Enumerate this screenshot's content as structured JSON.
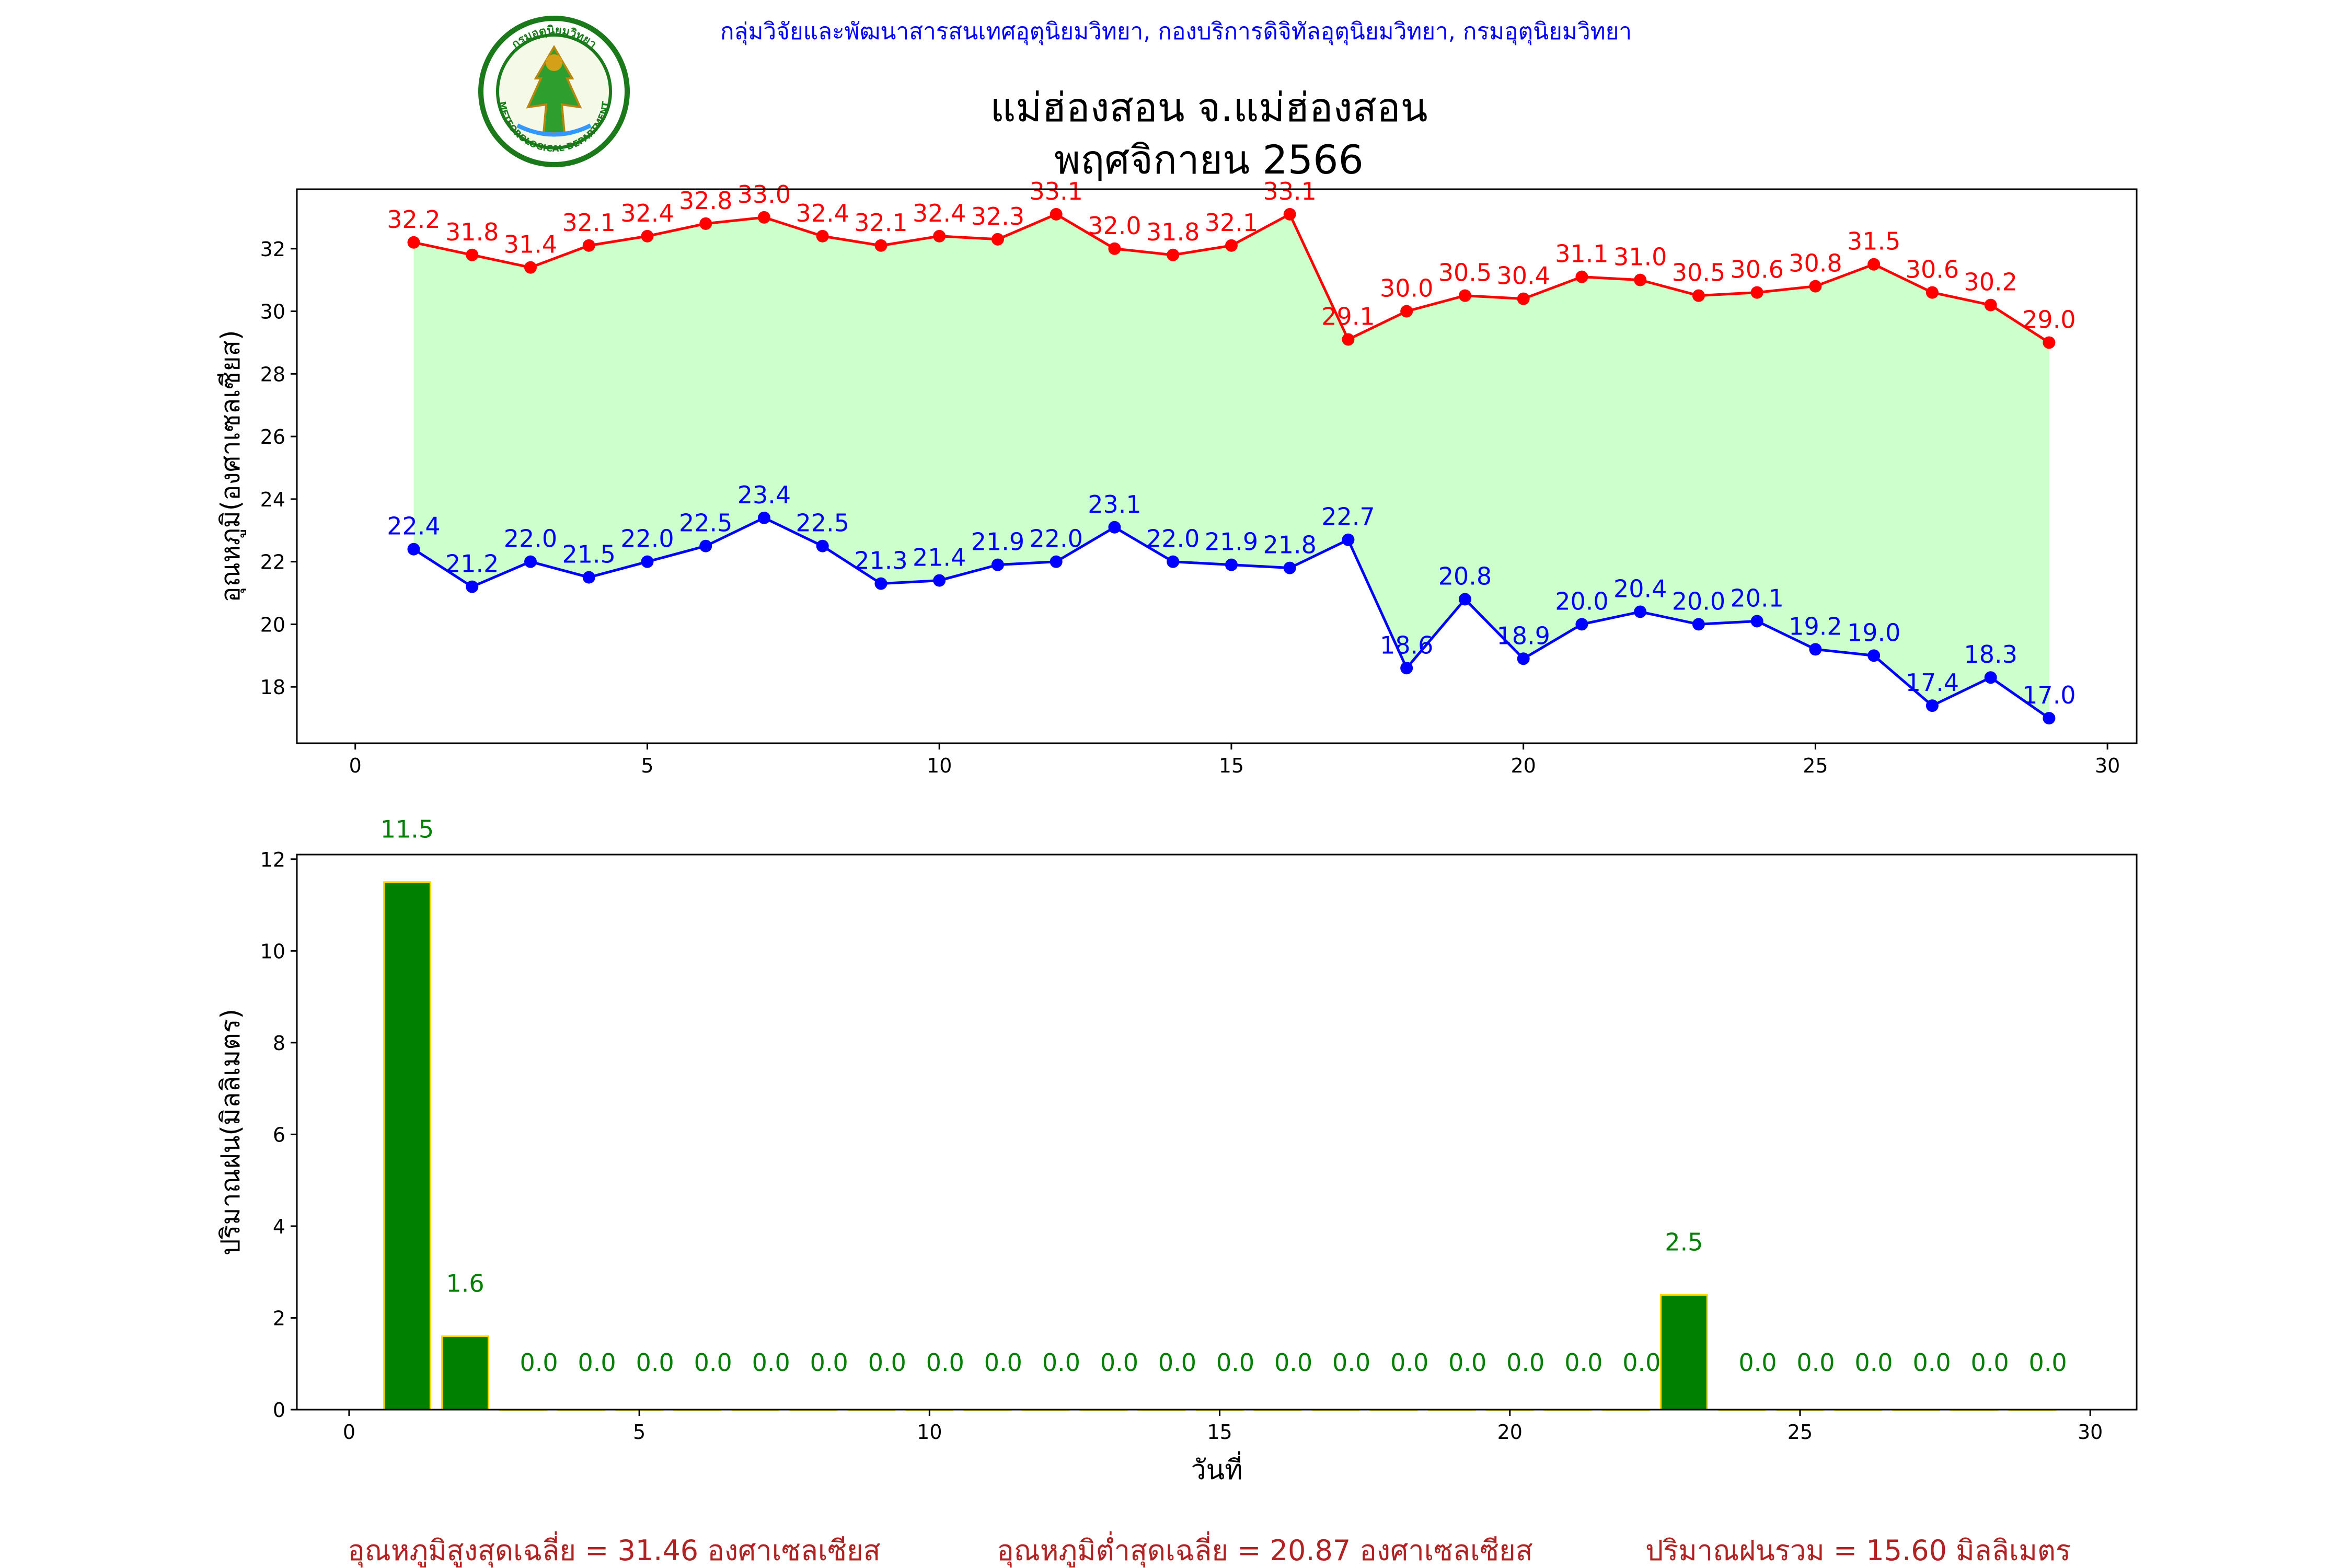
{
  "header": {
    "org_line": "กลุ่มวิจัยและพัฒนาสารสนเทศอุตุนิยมวิทยา, กองบริการดิจิทัลอุตุนิยมวิทยา, กรมอุตุนิยมวิทยา",
    "title_line1": "แม่ฮ่องสอน จ.แม่ฮ่องสอน",
    "title_line2": "พฤศจิกายน 2566",
    "logo_text_top": "กรมอุตุนิยมวิทยา",
    "logo_text_bottom": "METEOROLOGICAL DEPARTMENT"
  },
  "colors": {
    "max_line": "#ff0000",
    "min_line": "#0000ff",
    "fill": "#ccffcc",
    "rain_bar": "#008000",
    "rain_edge": "#ffd700",
    "rain_label": "#008000",
    "org_text": "#0000ff",
    "summary_text": "#b22222"
  },
  "chart_data": [
    {
      "type": "line",
      "ylabel": "อุณหภูมิ(องศาเซลเซียส)",
      "xlabel": "",
      "xlim": [
        -1,
        30.5
      ],
      "ylim": [
        16.2,
        33.9
      ],
      "xticks": [
        0,
        5,
        10,
        15,
        20,
        25,
        30
      ],
      "yticks": [
        18,
        20,
        22,
        24,
        26,
        28,
        30,
        32
      ],
      "x": [
        1,
        2,
        3,
        4,
        5,
        6,
        7,
        8,
        9,
        10,
        11,
        12,
        13,
        14,
        15,
        16,
        17,
        18,
        19,
        20,
        21,
        22,
        23,
        24,
        25,
        26,
        27,
        28,
        29
      ],
      "series": [
        {
          "values": [
            32.2,
            31.8,
            31.4,
            32.1,
            32.4,
            32.8,
            33.0,
            32.4,
            32.1,
            32.4,
            32.3,
            33.1,
            32.0,
            31.8,
            32.1,
            33.1,
            29.1,
            30.0,
            30.5,
            30.4,
            31.1,
            31.0,
            30.5,
            30.6,
            30.8,
            31.5,
            30.6,
            30.2,
            29.0
          ]
        },
        {
          "values": [
            22.4,
            21.2,
            22.0,
            21.5,
            22.0,
            22.5,
            23.4,
            22.5,
            21.3,
            21.4,
            21.9,
            22.0,
            23.1,
            22.0,
            21.9,
            21.8,
            22.7,
            18.6,
            20.8,
            18.9,
            20.0,
            20.4,
            20.0,
            20.1,
            19.2,
            19.0,
            17.4,
            18.3,
            17.0
          ]
        }
      ],
      "fill_between": true,
      "grid": false
    },
    {
      "type": "bar",
      "ylabel": "ปริมาณฝน(มิลลิเมตร)",
      "xlabel": "วันที่",
      "xlim": [
        -0.9,
        30.8
      ],
      "ylim": [
        0,
        12.1
      ],
      "xticks": [
        0,
        5,
        10,
        15,
        20,
        25,
        30
      ],
      "yticks": [
        0,
        2,
        4,
        6,
        8,
        10,
        12
      ],
      "x": [
        1,
        2,
        3,
        4,
        5,
        6,
        7,
        8,
        9,
        10,
        11,
        12,
        13,
        14,
        15,
        16,
        17,
        18,
        19,
        20,
        21,
        22,
        23,
        24,
        25,
        26,
        27,
        28,
        29
      ],
      "values": [
        11.5,
        1.6,
        0.0,
        0.0,
        0.0,
        0.0,
        0.0,
        0.0,
        0.0,
        0.0,
        0.0,
        0.0,
        0.0,
        0.0,
        0.0,
        0.0,
        0.0,
        0.0,
        0.0,
        0.0,
        0.0,
        0.0,
        2.5,
        0.0,
        0.0,
        0.0,
        0.0,
        0.0,
        0.0
      ],
      "grid": false
    }
  ],
  "summary": {
    "avg_max": "อุณหภูมิสูงสุดเฉลี่ย = 31.46 องศาเซลเซียส",
    "avg_min": "อุณหภูมิต่ำสุดเฉลี่ย = 20.87 องศาเซลเซียส",
    "total_rain": "ปริมาณฝนรวม = 15.60 มิลลิเมตร"
  }
}
